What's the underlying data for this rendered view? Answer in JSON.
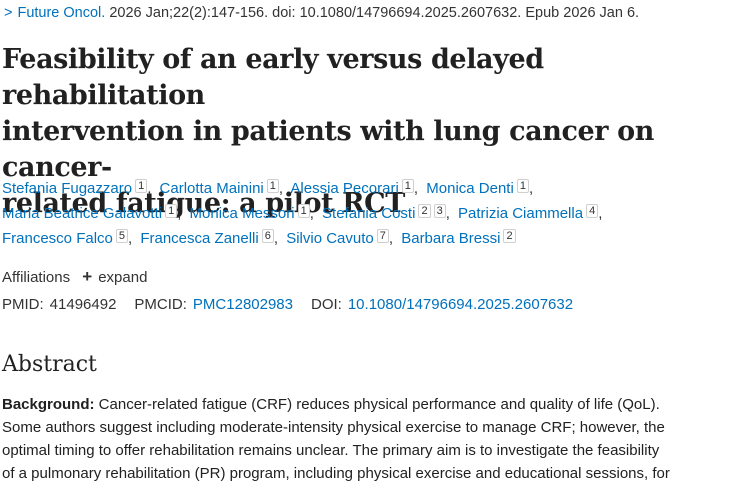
{
  "citation": {
    "chevron": ">",
    "journal": "Future Oncol.",
    "details": " 2026 Jan;22(2):147-156. doi: 10.1080/14796694.2025.2607632. Epub 2026 Jan 6."
  },
  "title_lines": [
    "Feasibility of an early versus delayed rehabilitation",
    "intervention in patients with lung cancer on cancer-",
    "related fatigue: a pilot RCT"
  ],
  "authors": {
    "line1": [
      {
        "name": "Stefania Fugazzaro",
        "aff": [
          "1"
        ]
      },
      {
        "name": "Carlotta Mainini",
        "aff": [
          "1"
        ]
      },
      {
        "name": "Alessia Pecorari",
        "aff": [
          "1"
        ]
      },
      {
        "name": "Monica Denti",
        "aff": [
          "1"
        ]
      }
    ],
    "line2": [
      {
        "name": "Maria Beatrice Galavotti",
        "aff": [
          "1"
        ]
      },
      {
        "name": "Monica Messori",
        "aff": [
          "1"
        ]
      },
      {
        "name": "Stefania Costi",
        "aff": [
          "2",
          "3"
        ]
      },
      {
        "name": "Patrizia Ciammella",
        "aff": [
          "4"
        ]
      }
    ],
    "line3": [
      {
        "name": "Francesco Falco",
        "aff": [
          "5"
        ]
      },
      {
        "name": "Francesca Zanelli",
        "aff": [
          "6"
        ]
      },
      {
        "name": "Silvio Cavuto",
        "aff": [
          "7"
        ]
      },
      {
        "name": "Barbara Bressi",
        "aff": [
          "2"
        ]
      }
    ]
  },
  "affiliations": {
    "label": "Affiliations",
    "expand_label": "expand",
    "expand_icon": "+"
  },
  "ids": {
    "pmid_label": "PMID:",
    "pmid": "41496492",
    "pmcid_label": "PMCID:",
    "pmcid": "PMC12802983",
    "doi_label": "DOI:",
    "doi": "10.1080/14796694.2025.2607632"
  },
  "abstract": {
    "heading": "Abstract",
    "background_label": "Background:",
    "lines": [
      " Cancer-related fatigue (CRF) reduces physical performance and quality of life (QoL).",
      "Some authors suggest including moderate-intensity physical exercise to manage CRF; however, the",
      "optimal timing to offer rehabilitation remains unclear. The primary aim is to investigate the feasibility",
      "of a pulmonary rehabilitation (PR) program, including physical exercise and educational sessions, for"
    ]
  },
  "colors": {
    "link": "#0071bc",
    "text": "#212121",
    "muted": "#333333"
  }
}
